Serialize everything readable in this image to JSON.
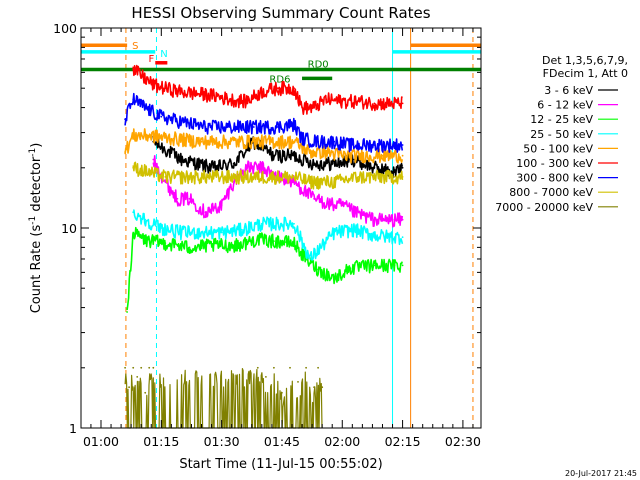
{
  "chart_data": {
    "type": "line",
    "title": "HESSI Observing Summary Count Rates",
    "xlabel": "Start Time (11-Jul-15 00:55:02)",
    "ylabel": "Count Rate (s⁻¹ detector⁻¹)",
    "ylabel_main": "Count Rate (s",
    "ylabel_sup1": "-1",
    "ylabel_mid": " detector",
    "ylabel_sup2": "-1",
    "ylabel_end": ")",
    "x_range_minutes": [
      55.03,
      154.5
    ],
    "x_ticks": [
      {
        "label": "01:00",
        "m": 60
      },
      {
        "label": "01:15",
        "m": 75
      },
      {
        "label": "01:30",
        "m": 90
      },
      {
        "label": "01:45",
        "m": 105
      },
      {
        "label": "02:00",
        "m": 120
      },
      {
        "label": "02:15",
        "m": 135
      },
      {
        "label": "02:30",
        "m": 150
      }
    ],
    "ylim": [
      1,
      100
    ],
    "y_scale": "log",
    "y_ticks": [
      {
        "label": "1",
        "v": 1
      },
      {
        "label": "10",
        "v": 10
      },
      {
        "label": "100",
        "v": 100
      }
    ],
    "legend_header": [
      "Det 1,3,5,6,7,9,",
      "FDecim 1, Att 0"
    ],
    "series": [
      {
        "name": "3 - 6 keV",
        "color": "#000000",
        "x": [
          73,
          80,
          88,
          93,
          98,
          103,
          108,
          113,
          118,
          123,
          128,
          133,
          135
        ],
        "y": [
          27,
          22,
          20,
          21,
          27,
          23,
          23,
          21,
          21,
          22,
          20,
          19,
          20
        ]
      },
      {
        "name": "6 - 12 keV",
        "color": "#ff00ff",
        "x": [
          73,
          76,
          79,
          82,
          86,
          90,
          93,
          96,
          100,
          104,
          108,
          113,
          118,
          120,
          123,
          128,
          133,
          135
        ],
        "y": [
          22,
          17,
          14,
          14,
          12,
          13,
          17,
          20,
          20,
          18,
          17,
          14,
          13,
          13,
          12,
          11,
          11,
          11
        ]
      },
      {
        "name": "12 - 25 keV",
        "color": "#00ff00",
        "x": [
          66.5,
          68,
          71,
          76,
          82,
          88,
          94,
          99,
          103,
          106,
          108,
          111,
          114,
          118,
          122,
          128,
          133,
          135
        ],
        "y": [
          3.8,
          9.5,
          8.7,
          8.4,
          8.0,
          8.2,
          8.2,
          8.8,
          8.6,
          8.5,
          8.4,
          7.0,
          6.2,
          5.6,
          6.3,
          6.5,
          6.5,
          6.5
        ]
      },
      {
        "name": "25 - 50 keV",
        "color": "#00ffff",
        "x": [
          68,
          71,
          75,
          80,
          85,
          90,
          95,
          100,
          104,
          108,
          112,
          118,
          123,
          128,
          133,
          135
        ],
        "y": [
          12,
          11,
          10,
          9.5,
          9.5,
          9.5,
          9.8,
          10.5,
          10.5,
          10.5,
          7.0,
          9.5,
          9.8,
          9.2,
          9.0,
          9.0
        ]
      },
      {
        "name": "50 - 100 keV",
        "color": "#ffa500",
        "x": [
          66,
          68,
          72,
          78,
          85,
          92,
          98,
          104,
          108,
          112,
          116,
          120,
          125,
          130,
          135
        ],
        "y": [
          24,
          29,
          29,
          28,
          27,
          27,
          27,
          27,
          27,
          24,
          24,
          23,
          23,
          23,
          23
        ]
      },
      {
        "name": "100 - 300 keV",
        "color": "#ff0000",
        "x": [
          68,
          70,
          73,
          76,
          80,
          84,
          88,
          92,
          96,
          100,
          104,
          108,
          110,
          113,
          116,
          120,
          124,
          128,
          132,
          135
        ],
        "y": [
          62,
          58,
          52,
          50,
          48,
          47,
          46,
          44,
          43,
          48,
          50,
          50,
          40,
          40,
          44,
          43,
          43,
          42,
          42,
          42
        ]
      },
      {
        "name": "300 - 800 keV",
        "color": "#0000ff",
        "x": [
          66,
          68,
          71,
          75,
          80,
          86,
          92,
          98,
          104,
          108,
          110,
          114,
          118,
          122,
          128,
          133,
          135
        ],
        "y": [
          35,
          44,
          40,
          36,
          34,
          32,
          32,
          32,
          32,
          33,
          28,
          27,
          27,
          26,
          26,
          26,
          26
        ]
      },
      {
        "name": "800 - 7000 keV",
        "color": "#d0c000",
        "x": [
          68,
          72,
          76,
          80,
          84,
          88,
          92,
          96,
          100,
          104,
          108,
          112,
          118,
          124,
          128,
          133,
          135
        ],
        "y": [
          20,
          19,
          18,
          18,
          18,
          18,
          18,
          18,
          18,
          18,
          18,
          17,
          17,
          18,
          18,
          18,
          18
        ]
      },
      {
        "name": "7000 - 20000 keV",
        "color": "#808000",
        "x": [
          66,
          67,
          68,
          69,
          70,
          71,
          72,
          73,
          99,
          101,
          103,
          105,
          107,
          109,
          111,
          113,
          114,
          115
        ],
        "y": [
          2.0,
          1.6,
          2.0,
          1.8,
          2.0,
          1.5,
          2.0,
          2.0,
          2.0,
          1.8,
          2.0,
          1.5,
          2.0,
          1.7,
          2.0,
          1.6,
          2.0,
          1.6
        ]
      }
    ],
    "flags": [
      {
        "label": "S",
        "color": "#ff8000",
        "level": 82,
        "segments": [
          [
            55,
            66.5
          ],
          [
            137,
            154.5
          ]
        ]
      },
      {
        "label": "N",
        "color": "#00ffff",
        "level": 76,
        "segments": [
          [
            55,
            73.5
          ],
          [
            132.5,
            154.5
          ]
        ]
      },
      {
        "label": "RD0",
        "color": "#008000",
        "level": 62,
        "segments": [
          [
            55,
            154.5
          ]
        ]
      },
      {
        "label": "RD6",
        "color": "#008000",
        "level": 56,
        "segments": [
          [
            110,
            117.5
          ]
        ]
      },
      {
        "label": "F",
        "color": "#ff0000",
        "level": 67,
        "segments": [
          [
            73.5,
            76.5
          ]
        ]
      }
    ],
    "vertical_markers": [
      {
        "m": 66.2,
        "color": "#ff8000",
        "style": "dashed"
      },
      {
        "m": 73.8,
        "color": "#00ffff",
        "style": "dashed"
      },
      {
        "m": 132.5,
        "color": "#00ffff",
        "style": "solid"
      },
      {
        "m": 137.0,
        "color": "#ff8000",
        "style": "solid"
      },
      {
        "m": 152.5,
        "color": "#ff8000",
        "style": "dashed"
      }
    ],
    "footer_date": "20-Jul-2017 21:45"
  }
}
